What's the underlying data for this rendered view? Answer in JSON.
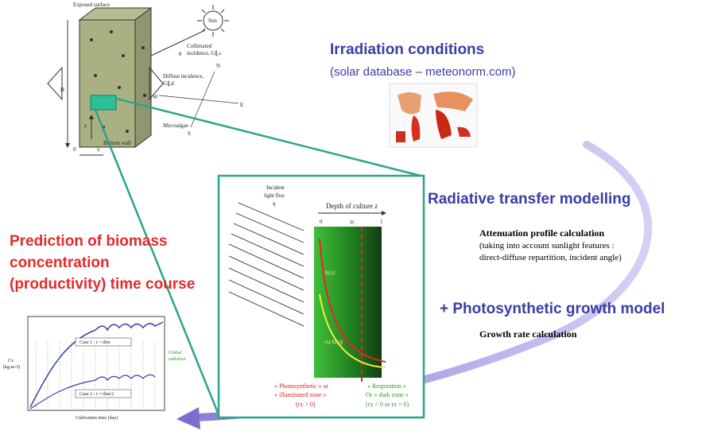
{
  "irradiation": {
    "title": "Irradiation conditions",
    "subtitle": "(solar database – meteonorm.com)"
  },
  "radiative": {
    "title": "Radiative transfer modelling",
    "subtitle": "Attenuation profile calculation",
    "notes": [
      "(taking into account sunlight features :",
      "direct-diffuse repartition, incident angle)"
    ]
  },
  "growth": {
    "title": "+ Photosynthetic growth model",
    "subtitle": "Growth rate calculation"
  },
  "prediction": {
    "lines": [
      "Prediction of biomass",
      "concentration",
      "(productivity) time course"
    ]
  },
  "reactor": {
    "labels": [
      "Exposed surface",
      "Sun",
      "Collimated",
      "incidence, G∥,c",
      "Diffuse incidence,",
      "G∥,d",
      "H",
      "z",
      "Microalgae",
      "Bottom wall",
      "0",
      "x",
      "N",
      "S",
      "E",
      "W",
      "θ"
    ]
  },
  "profile": {
    "flux": [
      "Incident",
      "light flux",
      "q"
    ],
    "depth": "Depth of culture z",
    "zero": "0",
    "one": "1",
    "zc": "zc",
    "curve_a": "A(z)",
    "curve_r": "rx(A(z))",
    "light_zone": [
      "« Photosynthetic » or",
      "« illuminated zone »",
      "(rx > 0)"
    ],
    "dark_zone": [
      "« Respiration »",
      "Or « dark zone »",
      "(rx < 0 or rx = 0)"
    ]
  },
  "graph": {
    "case1": "Case 1 : t = tlim",
    "case2": "Case 2 : t = tlim/2",
    "ylabel": [
      "Cx",
      "(kg.m-3)"
    ],
    "y2label": [
      "Global",
      "radiation"
    ],
    "xlabel": "Cultivation time (day)"
  }
}
